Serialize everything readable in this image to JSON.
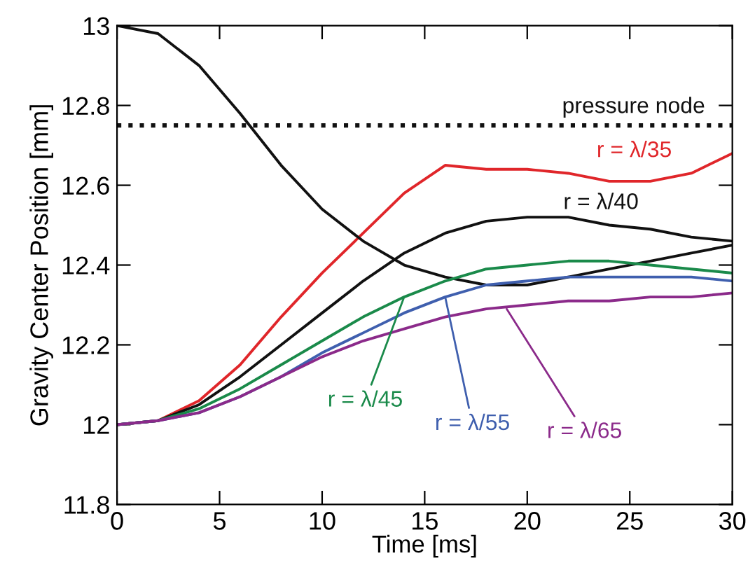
{
  "chart_data": {
    "type": "line",
    "xlabel": "Time [ms]",
    "ylabel": "Gravity Center Position [mm]",
    "xlim": [
      0,
      30
    ],
    "xticks": [
      0,
      5,
      10,
      15,
      20,
      25,
      30
    ],
    "ylim": [
      11.8,
      13
    ],
    "yticks": [
      11.8,
      12,
      12.2,
      12.4,
      12.6,
      12.8,
      13
    ],
    "x": [
      0,
      2,
      4,
      6,
      8,
      10,
      12,
      14,
      16,
      18,
      20,
      22,
      24,
      26,
      28,
      30
    ],
    "grid": false,
    "legend": false,
    "marker": "none",
    "line_style": "solid",
    "series": [
      {
        "color": "#e0262a",
        "values": [
          12,
          12.01,
          12.06,
          12.15,
          12.27,
          12.38,
          12.48,
          12.58,
          12.65,
          12.64,
          12.64,
          12.63,
          12.61,
          12.61,
          12.63,
          12.68
        ]
      },
      {
        "color": "#111111",
        "values": [
          12,
          12.01,
          12.05,
          12.12,
          12.2,
          12.28,
          12.36,
          12.43,
          12.48,
          12.51,
          12.52,
          12.52,
          12.5,
          12.49,
          12.47,
          12.46
        ]
      },
      {
        "color": "#111111",
        "values": [
          13,
          12.98,
          12.9,
          12.78,
          12.65,
          12.54,
          12.46,
          12.4,
          12.37,
          12.35,
          12.35,
          12.37,
          12.39,
          12.41,
          12.43,
          12.45
        ]
      },
      {
        "color": "#1a8a4a",
        "values": [
          12,
          12.01,
          12.04,
          12.09,
          12.15,
          12.21,
          12.27,
          12.32,
          12.36,
          12.39,
          12.4,
          12.41,
          12.41,
          12.4,
          12.39,
          12.38
        ]
      },
      {
        "color": "#3f5fae",
        "values": [
          12,
          12.01,
          12.03,
          12.07,
          12.12,
          12.18,
          12.23,
          12.28,
          12.32,
          12.35,
          12.36,
          12.37,
          12.37,
          12.37,
          12.37,
          12.36
        ]
      },
      {
        "color": "#8b2a8a",
        "values": [
          12,
          12.01,
          12.03,
          12.07,
          12.12,
          12.17,
          12.21,
          12.24,
          12.27,
          12.29,
          12.3,
          12.31,
          12.31,
          12.32,
          12.32,
          12.33
        ]
      }
    ],
    "ref_lines": [
      {
        "axis": "y",
        "value": 12.75,
        "label": "pressure node",
        "color": "#111111",
        "line_style": "dotted"
      }
    ],
    "annotations": [
      {
        "text": "r = λ/35",
        "x": 28,
        "y": 12.63
      },
      {
        "text": "r = λ/40",
        "x": 26,
        "y": 12.49
      },
      {
        "text": "r = λ/45",
        "x": 14,
        "y": 12.32
      },
      {
        "text": "r = λ/55",
        "x": 16,
        "y": 12.32
      },
      {
        "text": "r = λ/65",
        "x": 19,
        "y": 12.29
      }
    ]
  }
}
